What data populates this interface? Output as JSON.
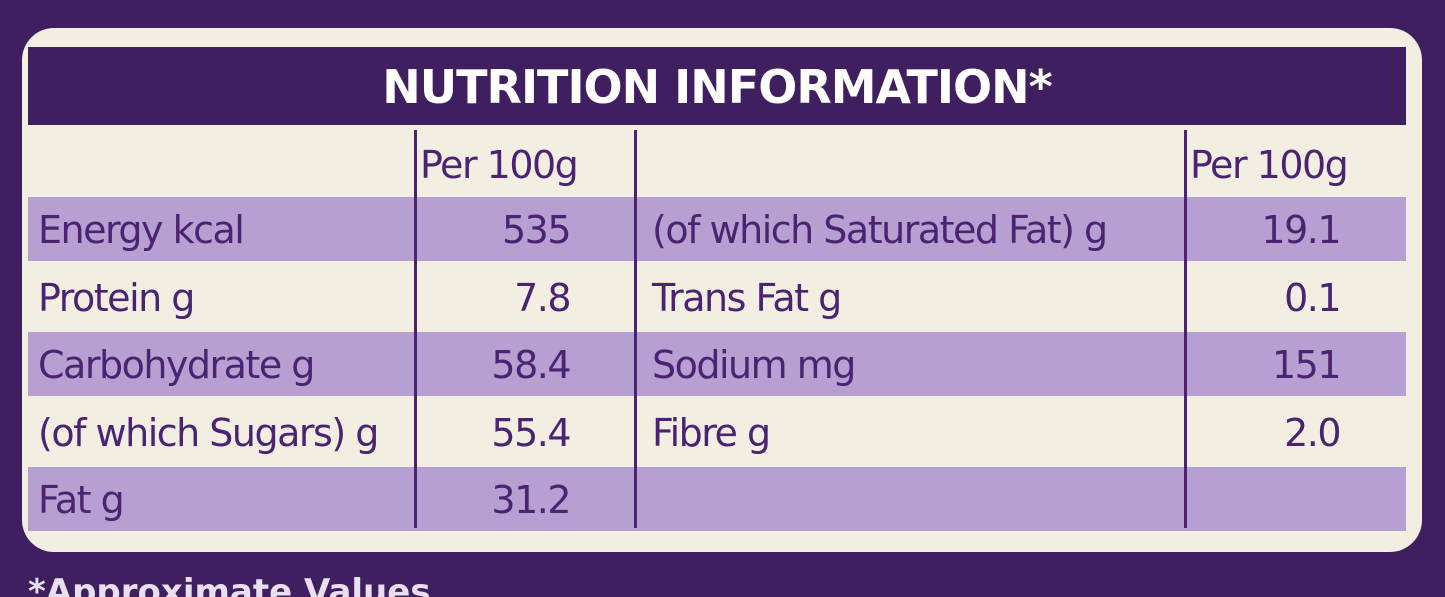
{
  "title": "NUTRITION INFORMATION*",
  "left": {
    "header": "Per 100g",
    "rows": [
      [
        "Energy kcal",
        "535"
      ],
      [
        "Protein g",
        "7.8"
      ],
      [
        "Carbohydrate g",
        "58.4"
      ],
      [
        "(of which Sugars) g",
        "55.4"
      ],
      [
        "Fat g",
        "31.2"
      ]
    ]
  },
  "right": {
    "header": "Per 100g",
    "rows": [
      [
        "(of which Saturated Fat) g",
        "19.1"
      ],
      [
        "Trans Fat g",
        "0.1"
      ],
      [
        "Sodium mg",
        "151"
      ],
      [
        "Fibre g",
        "2.0"
      ]
    ]
  },
  "footnote": "*Approximate Values"
}
